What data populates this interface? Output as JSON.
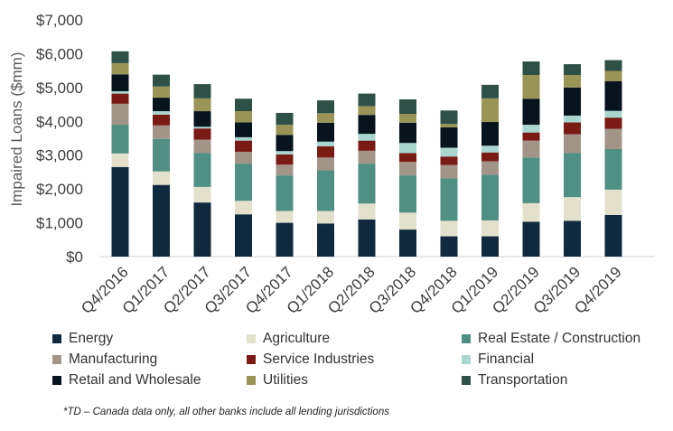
{
  "chart_data": {
    "type": "bar",
    "stacked": true,
    "ylabel": "Impaired Loans ($mm)",
    "ylim": [
      0,
      7000
    ],
    "yticks": [
      0,
      1000,
      2000,
      3000,
      4000,
      5000,
      6000,
      7000
    ],
    "ytick_labels": [
      "$0",
      "$1,000",
      "$2,000",
      "$3,000",
      "$4,000",
      "$5,000",
      "$6,000",
      "$7,000"
    ],
    "categories": [
      "Q4/2016",
      "Q1/2017",
      "Q2/2017",
      "Q3/2017",
      "Q4/2017",
      "Q1/2018",
      "Q2/2018",
      "Q3/2018",
      "Q4/2018",
      "Q1/2019",
      "Q2/2019",
      "Q3/2019",
      "Q4/2019"
    ],
    "series": [
      {
        "name": "Energy",
        "color": "#0f2a3f",
        "values": [
          2650,
          2120,
          1600,
          1250,
          1000,
          980,
          1100,
          800,
          600,
          600,
          1030,
          1060,
          1230
        ]
      },
      {
        "name": "Agriculture",
        "color": "#e3e0cc",
        "values": [
          400,
          400,
          460,
          400,
          350,
          370,
          470,
          500,
          460,
          470,
          550,
          700,
          750
        ]
      },
      {
        "name": "Real Estate / Construction",
        "color": "#4f8f84",
        "values": [
          850,
          960,
          1000,
          1100,
          1050,
          1200,
          1180,
          1100,
          1250,
          1350,
          1350,
          1300,
          1200
        ]
      },
      {
        "name": "Manufacturing",
        "color": "#a39488",
        "values": [
          620,
          400,
          400,
          350,
          320,
          380,
          380,
          400,
          400,
          400,
          500,
          560,
          600
        ]
      },
      {
        "name": "Service Industries",
        "color": "#7a1a14",
        "values": [
          300,
          320,
          330,
          330,
          300,
          330,
          300,
          260,
          250,
          260,
          240,
          350,
          330
        ]
      },
      {
        "name": "Financial",
        "color": "#a9d6cf",
        "values": [
          70,
          100,
          50,
          100,
          100,
          140,
          200,
          300,
          260,
          200,
          230,
          200,
          200
        ]
      },
      {
        "name": "Retail and Wholesale",
        "color": "#07141d",
        "values": [
          500,
          400,
          460,
          440,
          480,
          560,
          560,
          600,
          600,
          700,
          770,
          830,
          880
        ]
      },
      {
        "name": "Utilities",
        "color": "#9b9457",
        "values": [
          330,
          330,
          380,
          330,
          300,
          280,
          260,
          260,
          100,
          700,
          700,
          370,
          300
        ]
      },
      {
        "name": "Transportation",
        "color": "#2d5147",
        "values": [
          350,
          350,
          420,
          370,
          350,
          380,
          370,
          430,
          400,
          400,
          400,
          320,
          320
        ]
      }
    ]
  },
  "footnote": "*TD – Canada data only, all other banks include all lending jurisdictions"
}
